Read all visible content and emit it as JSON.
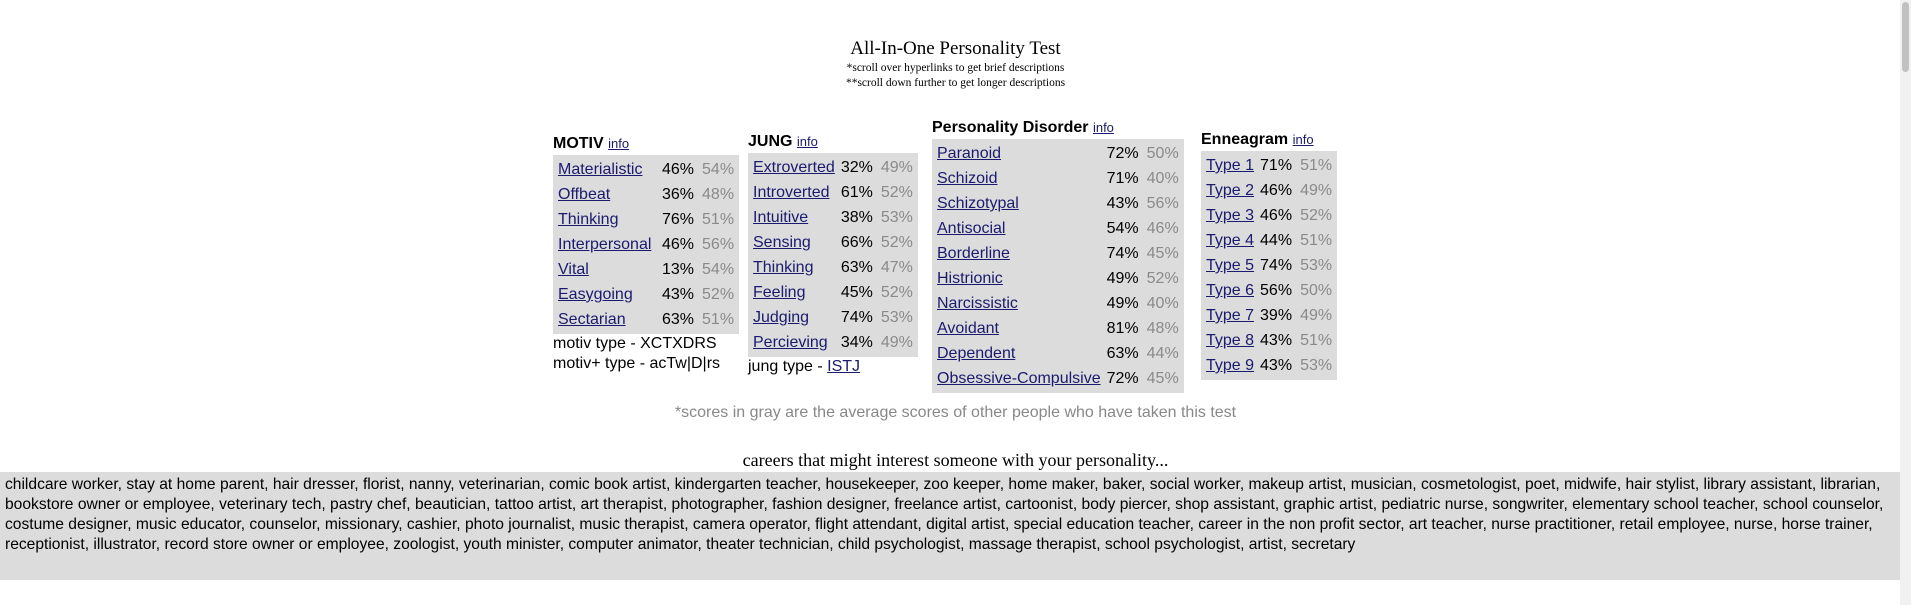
{
  "header": {
    "title": "All-In-One Personality Test",
    "note1": "*scroll over hyperlinks to get brief descriptions",
    "note2": "**scroll down further to get longer descriptions"
  },
  "motiv": {
    "title": "MOTIV",
    "info": "info",
    "rows": [
      {
        "name": "Materialistic",
        "score": "46%",
        "avg": "54%"
      },
      {
        "name": "Offbeat",
        "score": "36%",
        "avg": "48%"
      },
      {
        "name": "Thinking",
        "score": "76%",
        "avg": "51%"
      },
      {
        "name": "Interpersonal",
        "score": "46%",
        "avg": "56%"
      },
      {
        "name": "Vital",
        "score": "13%",
        "avg": "54%"
      },
      {
        "name": "Easygoing",
        "score": "43%",
        "avg": "52%"
      },
      {
        "name": "Sectarian",
        "score": "63%",
        "avg": "51%"
      }
    ],
    "type_line": "motiv type - XCTXDRS",
    "type_plus_line": "motiv+ type - acTw|D|rs"
  },
  "jung": {
    "title": "JUNG",
    "info": "info",
    "rows": [
      {
        "name": "Extroverted",
        "score": "32%",
        "avg": "49%"
      },
      {
        "name": "Introverted",
        "score": "61%",
        "avg": "52%"
      },
      {
        "name": "Intuitive",
        "score": "38%",
        "avg": "53%"
      },
      {
        "name": "Sensing",
        "score": "66%",
        "avg": "52%"
      },
      {
        "name": "Thinking",
        "score": "63%",
        "avg": "47%"
      },
      {
        "name": "Feeling",
        "score": "45%",
        "avg": "52%"
      },
      {
        "name": "Judging",
        "score": "74%",
        "avg": "53%"
      },
      {
        "name": "Percieving",
        "score": "34%",
        "avg": "49%"
      }
    ],
    "type_label": "jung type - ",
    "type_value": "ISTJ"
  },
  "pd": {
    "title": "Personality Disorder",
    "info": "info",
    "rows": [
      {
        "name": "Paranoid",
        "score": "72%",
        "avg": "50%"
      },
      {
        "name": "Schizoid",
        "score": "71%",
        "avg": "40%"
      },
      {
        "name": "Schizotypal",
        "score": "43%",
        "avg": "56%"
      },
      {
        "name": "Antisocial",
        "score": "54%",
        "avg": "46%"
      },
      {
        "name": "Borderline",
        "score": "74%",
        "avg": "45%"
      },
      {
        "name": "Histrionic",
        "score": "49%",
        "avg": "52%"
      },
      {
        "name": "Narcissistic",
        "score": "49%",
        "avg": "40%"
      },
      {
        "name": "Avoidant",
        "score": "81%",
        "avg": "48%"
      },
      {
        "name": "Dependent",
        "score": "63%",
        "avg": "44%"
      },
      {
        "name": "Obsessive-Compulsive",
        "score": "72%",
        "avg": "45%"
      }
    ]
  },
  "enneagram": {
    "title": "Enneagram",
    "info": "info",
    "rows": [
      {
        "name": "Type 1",
        "score": "71%",
        "avg": "51%"
      },
      {
        "name": "Type 2",
        "score": "46%",
        "avg": "49%"
      },
      {
        "name": "Type 3",
        "score": "46%",
        "avg": "52%"
      },
      {
        "name": "Type 4",
        "score": "44%",
        "avg": "51%"
      },
      {
        "name": "Type 5",
        "score": "74%",
        "avg": "53%"
      },
      {
        "name": "Type 6",
        "score": "56%",
        "avg": "50%"
      },
      {
        "name": "Type 7",
        "score": "39%",
        "avg": "49%"
      },
      {
        "name": "Type 8",
        "score": "43%",
        "avg": "51%"
      },
      {
        "name": "Type 9",
        "score": "43%",
        "avg": "53%"
      }
    ]
  },
  "gray_note": "*scores in gray are the average scores of other people who have taken this test",
  "careers": {
    "title": "careers that might interest someone with your personality...",
    "text": "childcare worker, stay at home parent, hair dresser, florist, nanny, veterinarian, comic book artist, kindergarten teacher, housekeeper, zoo keeper, home maker, baker, social worker, makeup artist, musician, cosmetologist, poet, midwife, hair stylist, library assistant, librarian, bookstore owner or employee, veterinary tech, pastry chef, beautician, tattoo artist, art therapist, photographer, fashion designer, freelance artist, cartoonist, body piercer, shop assistant, graphic artist, pediatric nurse, songwriter, elementary school teacher, school counselor, costume designer, music educator, counselor, missionary, cashier, photo journalist, music therapist, camera operator, flight attendant, digital artist, special education teacher, career in the non profit sector, art teacher, nurse practitioner, retail employee, nurse, horse trainer, receptionist, illustrator, record store owner or employee, zoologist, youth minister, computer animator, theater technician, child psychologist, massage therapist, school psychologist, artist, secretary"
  },
  "colors": {
    "panel_bg": "#dcdcdc",
    "link": "#1a1a6e",
    "avg_gray": "#8a8a8a"
  }
}
